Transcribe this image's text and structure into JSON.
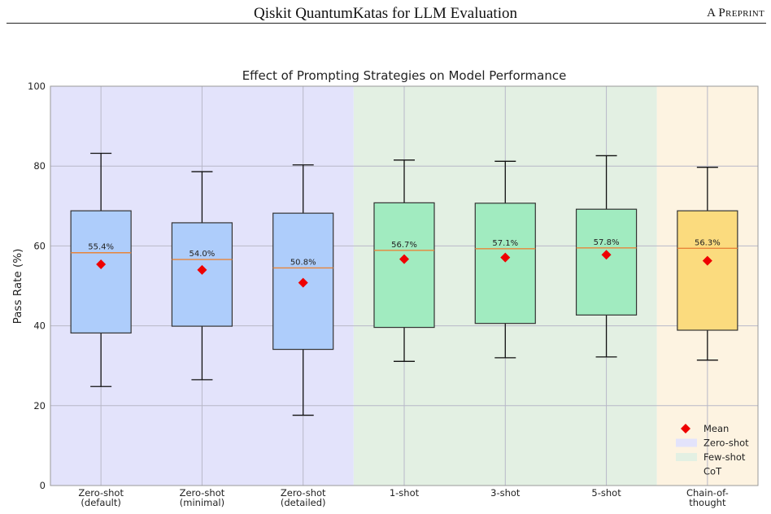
{
  "page_header": {
    "title": "Qiskit QuantumKatas for LLM Evaluation",
    "right": "A Preprint"
  },
  "chart_data": {
    "type": "box",
    "title": "Effect of Prompting Strategies on Model Performance",
    "xlabel": "",
    "ylabel": "Pass Rate (%)",
    "ylim": [
      0,
      100
    ],
    "yticks": [
      0,
      20,
      40,
      60,
      80,
      100
    ],
    "grid": true,
    "legend_position": "bottom-right",
    "categories": [
      [
        "Zero-shot",
        "(default)"
      ],
      [
        "Zero-shot",
        "(minimal)"
      ],
      [
        "Zero-shot",
        "(detailed)"
      ],
      [
        "1-shot"
      ],
      [
        "3-shot"
      ],
      [
        "5-shot"
      ],
      [
        "Chain-of-",
        "thought"
      ]
    ],
    "groups": [
      "Zero-shot",
      "Zero-shot",
      "Zero-shot",
      "Few-shot",
      "Few-shot",
      "Few-shot",
      "CoT"
    ],
    "boxes": [
      {
        "whisker_low": 24.8,
        "q1": 38.2,
        "median": 58.3,
        "q3": 68.8,
        "whisker_high": 83.2,
        "mean": 55.4
      },
      {
        "whisker_low": 26.5,
        "q1": 39.9,
        "median": 56.6,
        "q3": 65.8,
        "whisker_high": 78.6,
        "mean": 54.0
      },
      {
        "whisker_low": 17.6,
        "q1": 34.1,
        "median": 54.5,
        "q3": 68.2,
        "whisker_high": 80.3,
        "mean": 50.8
      },
      {
        "whisker_low": 31.1,
        "q1": 39.6,
        "median": 58.9,
        "q3": 70.8,
        "whisker_high": 81.5,
        "mean": 56.7
      },
      {
        "whisker_low": 32.0,
        "q1": 40.6,
        "median": 59.3,
        "q3": 70.7,
        "whisker_high": 81.2,
        "mean": 57.1
      },
      {
        "whisker_low": 32.2,
        "q1": 42.7,
        "median": 59.5,
        "q3": 69.2,
        "whisker_high": 82.6,
        "mean": 57.8
      },
      {
        "whisker_low": 31.4,
        "q1": 38.9,
        "median": 59.4,
        "q3": 68.8,
        "whisker_high": 79.7,
        "mean": 56.3
      }
    ],
    "mean_labels": [
      "55.4%",
      "54.0%",
      "50.8%",
      "56.7%",
      "57.1%",
      "57.8%",
      "56.3%"
    ],
    "legend": [
      {
        "label": "Mean",
        "kind": "mean"
      },
      {
        "label": "Zero-shot",
        "kind": "zero"
      },
      {
        "label": "Few-shot",
        "kind": "few"
      },
      {
        "label": "CoT",
        "kind": "cot"
      }
    ],
    "colors": {
      "zero_bg": "#e3e3fb",
      "few_bg": "#e3f0e3",
      "cot_bg": "#fdf3e1",
      "zero_box": "#aecdfb",
      "few_box": "#a1ebc0",
      "cot_box": "#fbdb7e",
      "median": "#e8853a",
      "mean": "#ee0000",
      "grid": "#b8b8c8",
      "axis": "#999999"
    }
  }
}
